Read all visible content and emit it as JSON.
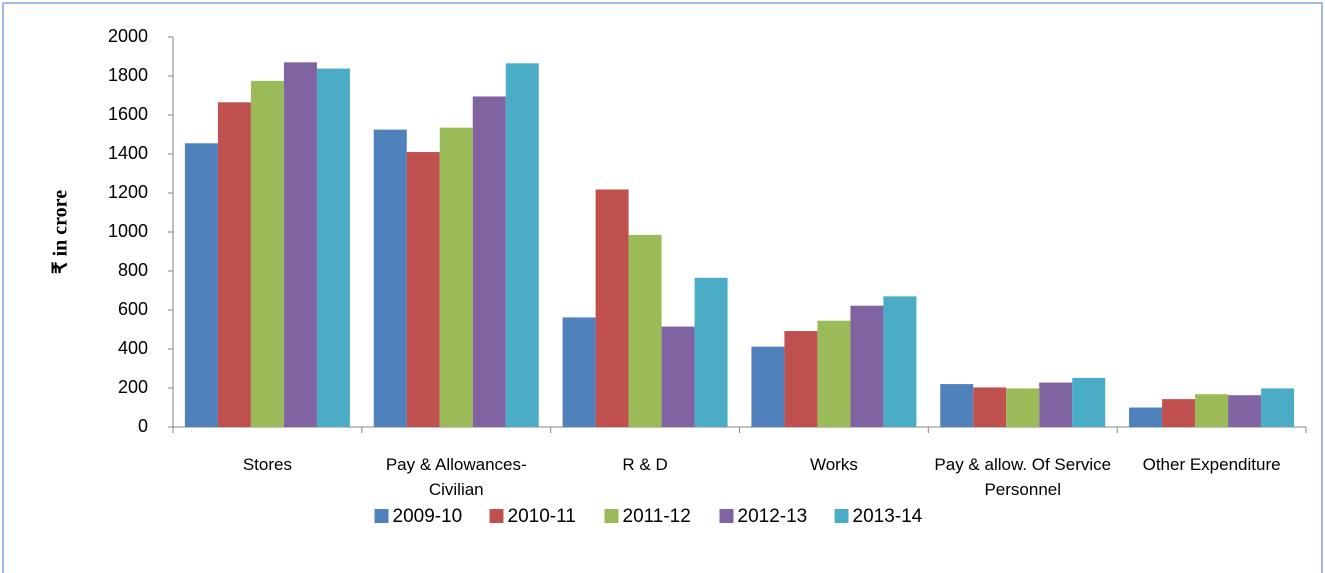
{
  "chart_data": {
    "type": "bar",
    "y_label": "₹ in crore",
    "categories": [
      "Stores",
      "Pay & Allowances-Civilian",
      "R & D",
      "Works",
      "Pay & allow. Of Service Personnel",
      "Other Expenditure"
    ],
    "series": [
      {
        "name": "2009-10",
        "color": "#4f81bd",
        "values": [
          1455,
          1525,
          562,
          412,
          220,
          100
        ]
      },
      {
        "name": "2010-11",
        "color": "#c0504d",
        "values": [
          1665,
          1410,
          1218,
          492,
          203,
          143
        ]
      },
      {
        "name": "2011-12",
        "color": "#9bbb59",
        "values": [
          1775,
          1535,
          985,
          545,
          198,
          168
        ]
      },
      {
        "name": "2012-13",
        "color": "#8064a2",
        "values": [
          1870,
          1695,
          515,
          622,
          228,
          163
        ]
      },
      {
        "name": "2013-14",
        "color": "#4bacc6",
        "values": [
          1838,
          1865,
          765,
          670,
          252,
          198
        ]
      }
    ],
    "ylim": [
      0,
      2000
    ],
    "yticks": [
      0,
      200,
      400,
      600,
      800,
      1000,
      1200,
      1400,
      1600,
      1800,
      2000
    ],
    "grid": false,
    "legend": "bottom"
  }
}
